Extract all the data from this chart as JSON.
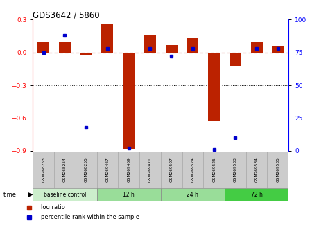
{
  "title": "GDS3642 / 5860",
  "samples": [
    "GSM268253",
    "GSM268254",
    "GSM268255",
    "GSM269467",
    "GSM269469",
    "GSM269471",
    "GSM269507",
    "GSM269524",
    "GSM269525",
    "GSM269533",
    "GSM269534",
    "GSM269535"
  ],
  "log_ratio": [
    0.09,
    0.1,
    -0.03,
    0.26,
    -0.88,
    0.16,
    0.07,
    0.13,
    -0.63,
    -0.13,
    0.1,
    0.06
  ],
  "percentile": [
    75,
    88,
    18,
    78,
    2,
    78,
    72,
    78,
    1,
    10,
    78,
    78
  ],
  "ylim_left": [
    -0.9,
    0.3
  ],
  "ylim_right": [
    0,
    100
  ],
  "yticks_left": [
    -0.9,
    -0.6,
    -0.3,
    0.0,
    0.3
  ],
  "yticks_right": [
    0,
    25,
    50,
    75,
    100
  ],
  "hline_y": 0.0,
  "dotted_lines": [
    -0.3,
    -0.6
  ],
  "bar_color": "#bb2200",
  "dot_color": "#0000cc",
  "bar_width": 0.55,
  "group_colors": [
    "#cceecc",
    "#99dd99",
    "#99dd99",
    "#44cc44"
  ],
  "group_labels": [
    "baseline control",
    "12 h",
    "24 h",
    "72 h"
  ],
  "group_starts": [
    0,
    3,
    6,
    9
  ],
  "group_ends": [
    3,
    6,
    9,
    12
  ],
  "label_color": "#cccccc"
}
